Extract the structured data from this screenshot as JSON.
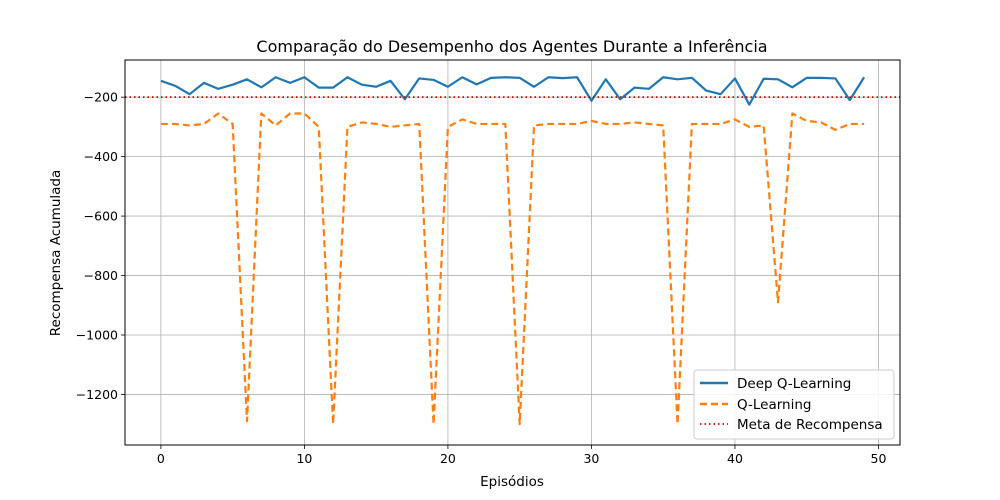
{
  "chart_data": {
    "type": "line",
    "title": "Comparação do Desempenho dos Agentes Durante a Inferência",
    "xlabel": "Episódios",
    "ylabel": "Recompensa Acumulada",
    "xlim": [
      -2.5,
      51.5
    ],
    "ylim": [
      -1370,
      -75
    ],
    "xticks": [
      0,
      10,
      20,
      30,
      40,
      50
    ],
    "yticks": [
      -1200,
      -1000,
      -800,
      -600,
      -400,
      -200
    ],
    "grid": true,
    "legend_position": "lower-right",
    "x": [
      0,
      1,
      2,
      3,
      4,
      5,
      6,
      7,
      8,
      9,
      10,
      11,
      12,
      13,
      14,
      15,
      16,
      17,
      18,
      19,
      20,
      21,
      22,
      23,
      24,
      25,
      26,
      27,
      28,
      29,
      30,
      31,
      32,
      33,
      34,
      35,
      36,
      37,
      38,
      39,
      40,
      41,
      42,
      43,
      44,
      45,
      46,
      47,
      48,
      49
    ],
    "series": [
      {
        "name": "Deep Q-Learning",
        "color": "#1f77b4",
        "style": "solid",
        "values": [
          -145,
          -162,
          -190,
          -152,
          -172,
          -158,
          -140,
          -167,
          -133,
          -152,
          -133,
          -168,
          -168,
          -133,
          -158,
          -165,
          -145,
          -207,
          -137,
          -142,
          -165,
          -133,
          -157,
          -135,
          -133,
          -135,
          -165,
          -133,
          -136,
          -133,
          -212,
          -140,
          -207,
          -168,
          -172,
          -133,
          -140,
          -135,
          -178,
          -190,
          -137,
          -225,
          -138,
          -140,
          -167,
          -135,
          -135,
          -137,
          -210,
          -133
        ]
      },
      {
        "name": "Q-Learning",
        "color": "#ff7f0e",
        "style": "dashed",
        "values": [
          -290,
          -290,
          -295,
          -290,
          -255,
          -290,
          -1290,
          -255,
          -295,
          -255,
          -255,
          -300,
          -1300,
          -300,
          -285,
          -290,
          -300,
          -295,
          -290,
          -1300,
          -300,
          -275,
          -290,
          -290,
          -290,
          -1300,
          -295,
          -290,
          -290,
          -290,
          -280,
          -290,
          -290,
          -285,
          -290,
          -295,
          -1300,
          -290,
          -290,
          -290,
          -275,
          -300,
          -295,
          -890,
          -255,
          -280,
          -285,
          -310,
          -290,
          -290
        ]
      }
    ],
    "reference_line": {
      "name": "Meta de Recompensa",
      "y": -200,
      "color": "#cc0000",
      "style": "dotted"
    }
  }
}
